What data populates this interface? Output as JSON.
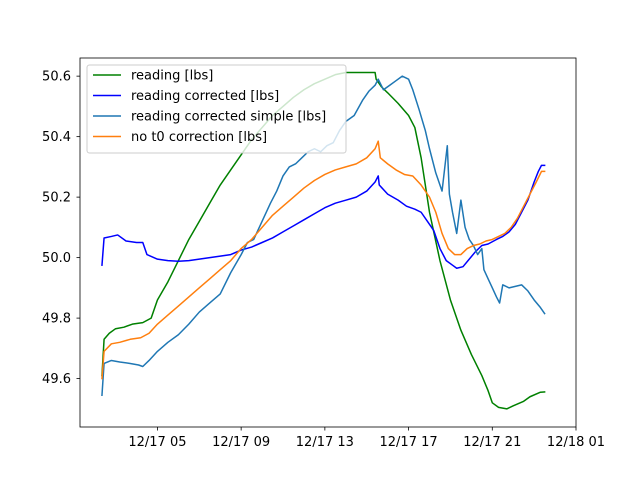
{
  "chart_data": {
    "type": "line",
    "title": "",
    "xlabel": "",
    "ylabel": "",
    "x_unit": "hours since 12/17 00:00",
    "xlim": [
      1.3,
      25.0
    ],
    "ylim": [
      49.44,
      50.66
    ],
    "x_ticks": [
      {
        "value": 5,
        "label": "12/17 05"
      },
      {
        "value": 9,
        "label": "12/17 09"
      },
      {
        "value": 13,
        "label": "12/17 13"
      },
      {
        "value": 17,
        "label": "12/17 17"
      },
      {
        "value": 21,
        "label": "12/17 21"
      },
      {
        "value": 25,
        "label": "12/18 01"
      }
    ],
    "y_ticks": [
      {
        "value": 49.6,
        "label": "49.6"
      },
      {
        "value": 49.8,
        "label": "49.8"
      },
      {
        "value": 50.0,
        "label": "50.0"
      },
      {
        "value": 50.2,
        "label": "50.2"
      },
      {
        "value": 50.4,
        "label": "50.4"
      },
      {
        "value": 50.6,
        "label": "50.6"
      }
    ],
    "grid": false,
    "legend_position": "top-left",
    "series": [
      {
        "name": "reading [lbs]",
        "color": "#008000",
        "points": [
          [
            2.35,
            49.61
          ],
          [
            2.45,
            49.73
          ],
          [
            2.7,
            49.75
          ],
          [
            3.0,
            49.765
          ],
          [
            3.4,
            49.77
          ],
          [
            3.8,
            49.78
          ],
          [
            4.3,
            49.785
          ],
          [
            4.7,
            49.8
          ],
          [
            5.0,
            49.86
          ],
          [
            5.5,
            49.92
          ],
          [
            6.0,
            49.99
          ],
          [
            6.5,
            50.06
          ],
          [
            7.0,
            50.12
          ],
          [
            7.5,
            50.18
          ],
          [
            8.0,
            50.24
          ],
          [
            8.5,
            50.29
          ],
          [
            9.0,
            50.34
          ],
          [
            9.5,
            50.39
          ],
          [
            10.0,
            50.43
          ],
          [
            10.5,
            50.47
          ],
          [
            11.0,
            50.5
          ],
          [
            11.5,
            50.53
          ],
          [
            12.0,
            50.555
          ],
          [
            12.5,
            50.575
          ],
          [
            13.0,
            50.59
          ],
          [
            13.5,
            50.605
          ],
          [
            14.0,
            50.612
          ],
          [
            14.5,
            50.612
          ],
          [
            15.0,
            50.612
          ],
          [
            15.4,
            50.612
          ],
          [
            15.45,
            50.59
          ],
          [
            15.7,
            50.565
          ],
          [
            16.0,
            50.545
          ],
          [
            16.5,
            50.51
          ],
          [
            17.0,
            50.47
          ],
          [
            17.3,
            50.43
          ],
          [
            17.6,
            50.33
          ],
          [
            18.0,
            50.15
          ],
          [
            18.5,
            49.99
          ],
          [
            19.0,
            49.86
          ],
          [
            19.5,
            49.76
          ],
          [
            20.0,
            49.68
          ],
          [
            20.5,
            49.61
          ],
          [
            20.8,
            49.56
          ],
          [
            21.0,
            49.52
          ],
          [
            21.3,
            49.505
          ],
          [
            21.7,
            49.5
          ],
          [
            22.0,
            49.51
          ],
          [
            22.5,
            49.525
          ],
          [
            22.8,
            49.54
          ],
          [
            23.3,
            49.555
          ],
          [
            23.5,
            49.556
          ]
        ]
      },
      {
        "name": "reading corrected [lbs]",
        "color": "#0000ff",
        "points": [
          [
            2.35,
            49.975
          ],
          [
            2.45,
            50.065
          ],
          [
            2.8,
            50.07
          ],
          [
            3.1,
            50.075
          ],
          [
            3.5,
            50.055
          ],
          [
            4.0,
            50.05
          ],
          [
            4.3,
            50.05
          ],
          [
            4.5,
            50.01
          ],
          [
            5.0,
            49.995
          ],
          [
            5.5,
            49.99
          ],
          [
            6.0,
            49.988
          ],
          [
            6.5,
            49.99
          ],
          [
            7.0,
            49.995
          ],
          [
            7.5,
            50.0
          ],
          [
            8.0,
            50.005
          ],
          [
            8.5,
            50.01
          ],
          [
            9.0,
            50.025
          ],
          [
            9.5,
            50.035
          ],
          [
            10.0,
            50.05
          ],
          [
            10.5,
            50.065
          ],
          [
            11.0,
            50.085
          ],
          [
            11.5,
            50.105
          ],
          [
            12.0,
            50.125
          ],
          [
            12.5,
            50.145
          ],
          [
            13.0,
            50.165
          ],
          [
            13.5,
            50.18
          ],
          [
            14.0,
            50.19
          ],
          [
            14.5,
            50.2
          ],
          [
            15.0,
            50.22
          ],
          [
            15.4,
            50.25
          ],
          [
            15.55,
            50.27
          ],
          [
            15.6,
            50.24
          ],
          [
            16.0,
            50.21
          ],
          [
            16.5,
            50.19
          ],
          [
            16.9,
            50.17
          ],
          [
            17.3,
            50.16
          ],
          [
            17.6,
            50.15
          ],
          [
            17.9,
            50.12
          ],
          [
            18.2,
            50.09
          ],
          [
            18.5,
            50.03
          ],
          [
            18.8,
            49.99
          ],
          [
            19.1,
            49.975
          ],
          [
            19.3,
            49.965
          ],
          [
            19.6,
            49.97
          ],
          [
            19.9,
            49.995
          ],
          [
            20.2,
            50.02
          ],
          [
            20.5,
            50.04
          ],
          [
            20.8,
            50.045
          ],
          [
            21.2,
            50.06
          ],
          [
            21.5,
            50.07
          ],
          [
            21.8,
            50.085
          ],
          [
            22.1,
            50.11
          ],
          [
            22.4,
            50.15
          ],
          [
            22.7,
            50.19
          ],
          [
            23.0,
            50.25
          ],
          [
            23.2,
            50.285
          ],
          [
            23.35,
            50.305
          ],
          [
            23.5,
            50.305
          ]
        ]
      },
      {
        "name": "reading corrected simple [lbs]",
        "color": "#1f77b4",
        "points": [
          [
            2.35,
            49.545
          ],
          [
            2.45,
            49.65
          ],
          [
            2.8,
            49.66
          ],
          [
            3.2,
            49.655
          ],
          [
            3.7,
            49.65
          ],
          [
            4.1,
            49.645
          ],
          [
            4.3,
            49.64
          ],
          [
            4.6,
            49.66
          ],
          [
            5.0,
            49.69
          ],
          [
            5.5,
            49.72
          ],
          [
            6.0,
            49.745
          ],
          [
            6.5,
            49.78
          ],
          [
            7.0,
            49.82
          ],
          [
            7.5,
            49.85
          ],
          [
            8.0,
            49.88
          ],
          [
            8.5,
            49.95
          ],
          [
            9.0,
            50.01
          ],
          [
            9.3,
            50.05
          ],
          [
            9.6,
            50.06
          ],
          [
            10.0,
            50.12
          ],
          [
            10.4,
            50.18
          ],
          [
            10.7,
            50.22
          ],
          [
            11.0,
            50.27
          ],
          [
            11.3,
            50.3
          ],
          [
            11.6,
            50.31
          ],
          [
            11.9,
            50.33
          ],
          [
            12.2,
            50.35
          ],
          [
            12.5,
            50.36
          ],
          [
            12.8,
            50.35
          ],
          [
            13.1,
            50.37
          ],
          [
            13.4,
            50.38
          ],
          [
            13.7,
            50.42
          ],
          [
            14.0,
            50.45
          ],
          [
            14.4,
            50.47
          ],
          [
            14.8,
            50.52
          ],
          [
            15.1,
            50.55
          ],
          [
            15.4,
            50.57
          ],
          [
            15.55,
            50.59
          ],
          [
            15.8,
            50.555
          ],
          [
            16.1,
            50.57
          ],
          [
            16.4,
            50.585
          ],
          [
            16.7,
            50.6
          ],
          [
            17.0,
            50.59
          ],
          [
            17.2,
            50.555
          ],
          [
            17.5,
            50.49
          ],
          [
            17.8,
            50.42
          ],
          [
            18.0,
            50.36
          ],
          [
            18.3,
            50.28
          ],
          [
            18.6,
            50.22
          ],
          [
            18.85,
            50.37
          ],
          [
            18.95,
            50.21
          ],
          [
            19.1,
            50.15
          ],
          [
            19.3,
            50.08
          ],
          [
            19.5,
            50.19
          ],
          [
            19.7,
            50.1
          ],
          [
            19.9,
            50.06
          ],
          [
            20.1,
            50.04
          ],
          [
            20.3,
            50.01
          ],
          [
            20.5,
            50.03
          ],
          [
            20.6,
            49.96
          ],
          [
            20.8,
            49.93
          ],
          [
            21.0,
            49.9
          ],
          [
            21.2,
            49.87
          ],
          [
            21.35,
            49.85
          ],
          [
            21.5,
            49.91
          ],
          [
            21.8,
            49.9
          ],
          [
            22.1,
            49.905
          ],
          [
            22.4,
            49.91
          ],
          [
            22.7,
            49.89
          ],
          [
            23.0,
            49.86
          ],
          [
            23.3,
            49.835
          ],
          [
            23.5,
            49.815
          ]
        ]
      },
      {
        "name": "no t0 correction [lbs]",
        "color": "#ff7f0e",
        "points": [
          [
            2.35,
            49.6
          ],
          [
            2.45,
            49.69
          ],
          [
            2.8,
            49.715
          ],
          [
            3.2,
            49.72
          ],
          [
            3.7,
            49.73
          ],
          [
            4.2,
            49.735
          ],
          [
            4.6,
            49.75
          ],
          [
            5.0,
            49.78
          ],
          [
            5.5,
            49.81
          ],
          [
            6.0,
            49.84
          ],
          [
            6.5,
            49.87
          ],
          [
            7.0,
            49.9
          ],
          [
            7.5,
            49.93
          ],
          [
            8.0,
            49.96
          ],
          [
            8.5,
            49.99
          ],
          [
            9.0,
            50.03
          ],
          [
            9.5,
            50.06
          ],
          [
            10.0,
            50.1
          ],
          [
            10.5,
            50.14
          ],
          [
            11.0,
            50.17
          ],
          [
            11.5,
            50.2
          ],
          [
            12.0,
            50.23
          ],
          [
            12.5,
            50.255
          ],
          [
            13.0,
            50.275
          ],
          [
            13.5,
            50.29
          ],
          [
            14.0,
            50.3
          ],
          [
            14.5,
            50.31
          ],
          [
            15.0,
            50.33
          ],
          [
            15.4,
            50.36
          ],
          [
            15.55,
            50.385
          ],
          [
            15.65,
            50.33
          ],
          [
            16.0,
            50.31
          ],
          [
            16.4,
            50.29
          ],
          [
            16.8,
            50.275
          ],
          [
            17.2,
            50.27
          ],
          [
            17.6,
            50.24
          ],
          [
            18.0,
            50.2
          ],
          [
            18.3,
            50.15
          ],
          [
            18.6,
            50.08
          ],
          [
            18.9,
            50.03
          ],
          [
            19.2,
            50.01
          ],
          [
            19.5,
            50.01
          ],
          [
            19.8,
            50.03
          ],
          [
            20.1,
            50.04
          ],
          [
            20.4,
            50.045
          ],
          [
            20.7,
            50.055
          ],
          [
            21.0,
            50.06
          ],
          [
            21.3,
            50.07
          ],
          [
            21.6,
            50.08
          ],
          [
            21.9,
            50.1
          ],
          [
            22.2,
            50.13
          ],
          [
            22.5,
            50.17
          ],
          [
            22.8,
            50.21
          ],
          [
            23.1,
            50.25
          ],
          [
            23.35,
            50.285
          ],
          [
            23.5,
            50.285
          ]
        ]
      }
    ]
  }
}
